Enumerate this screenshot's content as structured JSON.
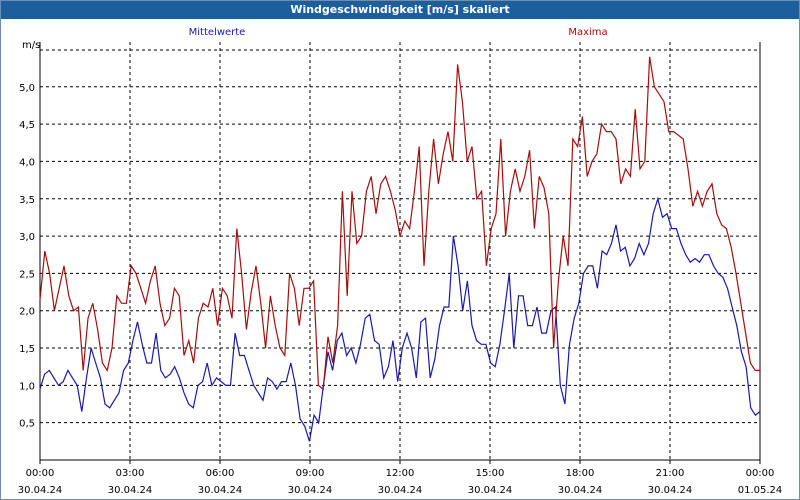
{
  "window": {
    "title": "Windgeschwindigkeit [m/s] skaliert"
  },
  "colors": {
    "title_bg": "#1c5f9c",
    "series_mean": "#1a1aa6",
    "series_max": "#a01010",
    "grid": "#000000"
  },
  "chart_data": {
    "type": "line",
    "title": "Windgeschwindigkeit [m/s] skaliert",
    "ylabel": "m/s",
    "xlabel": "",
    "ylim": [
      0,
      5.6
    ],
    "y_ticks": [
      "0,5",
      "1,0",
      "1,5",
      "2,0",
      "2,5",
      "3,0",
      "3,5",
      "4,0",
      "4,5",
      "5,0"
    ],
    "y_tick_values": [
      0.5,
      1.0,
      1.5,
      2.0,
      2.5,
      3.0,
      3.5,
      4.0,
      4.5,
      5.0
    ],
    "xlim_hours": [
      0,
      24
    ],
    "x_ticks": [
      {
        "time": "00:00",
        "date": "30.04.24"
      },
      {
        "time": "03:00",
        "date": "30.04.24"
      },
      {
        "time": "06:00",
        "date": "30.04.24"
      },
      {
        "time": "09:00",
        "date": "30.04.24"
      },
      {
        "time": "12:00",
        "date": "30.04.24"
      },
      {
        "time": "15:00",
        "date": "30.04.24"
      },
      {
        "time": "18:00",
        "date": "30.04.24"
      },
      {
        "time": "21:00",
        "date": "30.04.24"
      },
      {
        "time": "00:00",
        "date": "01.05.24"
      }
    ],
    "grid": true,
    "legend": [
      "Mittelwerte",
      "Maxima"
    ],
    "series": [
      {
        "name": "Mittelwerte",
        "color": "#1a1aa6",
        "values": [
          0.95,
          1.15,
          1.2,
          1.1,
          1.0,
          1.05,
          1.2,
          1.1,
          1.0,
          0.65,
          1.1,
          1.5,
          1.3,
          1.1,
          0.75,
          0.7,
          0.8,
          0.9,
          1.2,
          1.3,
          1.6,
          1.85,
          1.55,
          1.3,
          1.3,
          1.7,
          1.2,
          1.1,
          1.15,
          1.25,
          1.1,
          0.9,
          0.75,
          0.7,
          1.0,
          1.05,
          1.3,
          1.0,
          1.1,
          1.05,
          1.0,
          1.0,
          1.7,
          1.4,
          1.4,
          1.2,
          1.0,
          0.9,
          0.8,
          1.1,
          1.05,
          0.95,
          1.05,
          1.05,
          1.3,
          1.0,
          0.55,
          0.45,
          0.25,
          0.6,
          0.5,
          1.0,
          1.45,
          1.2,
          1.6,
          1.7,
          1.4,
          1.5,
          1.3,
          1.55,
          1.9,
          1.95,
          1.6,
          1.55,
          1.1,
          1.25,
          1.6,
          1.05,
          1.5,
          1.7,
          1.5,
          1.1,
          1.85,
          1.9,
          1.1,
          1.35,
          1.8,
          2.05,
          2.05,
          3.0,
          2.6,
          2.0,
          2.4,
          1.8,
          1.6,
          1.55,
          1.55,
          1.3,
          1.25,
          1.55,
          2.0,
          2.5,
          1.5,
          2.2,
          2.2,
          1.8,
          1.8,
          2.05,
          1.7,
          1.7,
          2.0,
          2.05,
          1.0,
          0.75,
          1.55,
          1.9,
          2.1,
          2.5,
          2.6,
          2.6,
          2.3,
          2.8,
          2.75,
          2.9,
          3.15,
          2.8,
          2.85,
          2.6,
          2.7,
          2.9,
          2.75,
          2.9,
          3.3,
          3.5,
          3.25,
          3.3,
          3.1,
          3.1,
          2.9,
          2.75,
          2.65,
          2.7,
          2.65,
          2.75,
          2.75,
          2.6,
          2.5,
          2.45,
          2.3,
          2.05,
          1.8,
          1.45,
          1.25,
          0.7,
          0.6,
          0.65
        ]
      },
      {
        "name": "Maxima",
        "color": "#a01010",
        "values": [
          2.15,
          2.8,
          2.5,
          2.0,
          2.3,
          2.6,
          2.2,
          2.0,
          2.05,
          1.2,
          1.9,
          2.1,
          1.75,
          1.3,
          1.2,
          1.5,
          2.2,
          2.1,
          2.1,
          2.6,
          2.5,
          2.3,
          2.1,
          2.4,
          2.6,
          2.1,
          1.8,
          1.9,
          2.3,
          2.2,
          1.4,
          1.6,
          1.3,
          1.9,
          2.1,
          2.05,
          2.3,
          1.8,
          2.3,
          2.2,
          1.9,
          3.1,
          2.5,
          1.75,
          2.25,
          2.6,
          2.1,
          1.5,
          2.2,
          1.8,
          1.5,
          1.4,
          2.5,
          2.3,
          1.8,
          2.3,
          2.3,
          2.4,
          1.0,
          0.95,
          1.65,
          1.3,
          1.8,
          3.6,
          2.2,
          3.6,
          2.9,
          3.0,
          3.6,
          3.8,
          3.3,
          3.7,
          3.8,
          3.6,
          3.35,
          3.0,
          3.2,
          3.1,
          3.6,
          4.2,
          2.6,
          3.6,
          4.3,
          3.7,
          4.1,
          4.4,
          4.0,
          5.3,
          4.8,
          4.0,
          4.2,
          3.5,
          3.6,
          2.6,
          3.1,
          3.3,
          4.3,
          3.0,
          3.6,
          3.9,
          3.6,
          3.8,
          4.15,
          3.1,
          3.8,
          3.65,
          3.3,
          1.5,
          2.4,
          3.0,
          2.6,
          4.3,
          4.2,
          4.6,
          3.8,
          4.0,
          4.1,
          4.5,
          4.4,
          4.4,
          4.3,
          3.7,
          3.9,
          3.8,
          4.7,
          3.9,
          4.0,
          5.4,
          5.0,
          4.9,
          4.8,
          4.4,
          4.4,
          4.35,
          4.3,
          3.9,
          3.4,
          3.6,
          3.4,
          3.6,
          3.7,
          3.3,
          3.15,
          3.1,
          2.85,
          2.5,
          2.1,
          1.7,
          1.3,
          1.2,
          1.2
        ]
      }
    ]
  }
}
